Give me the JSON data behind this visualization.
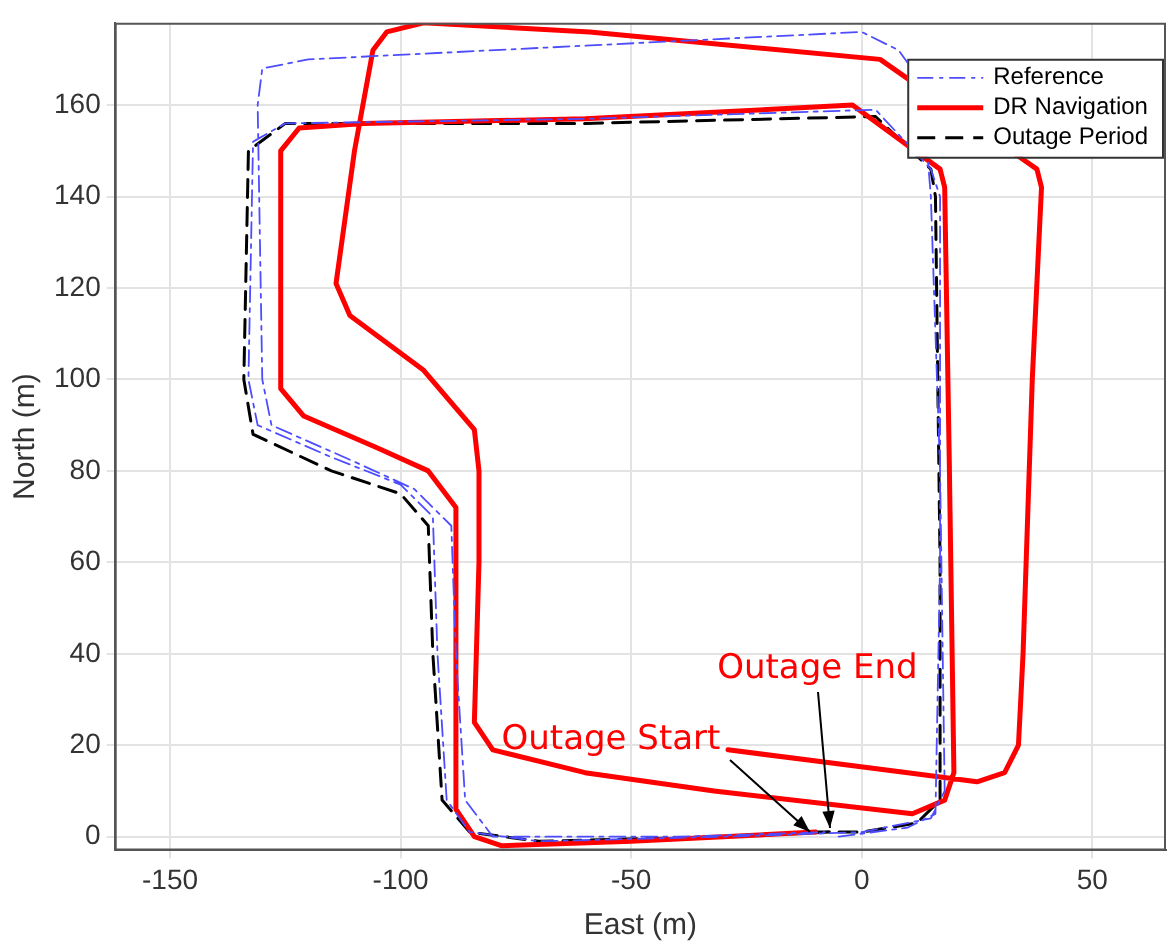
{
  "chart_data": {
    "type": "line",
    "xlabel": "East (m)",
    "ylabel": "North (m)",
    "xlim": [
      -162,
      66
    ],
    "ylim": [
      -3,
      178
    ],
    "xticks": [
      -150,
      -100,
      -50,
      0,
      50
    ],
    "yticks": [
      0,
      20,
      40,
      60,
      80,
      100,
      120,
      140,
      160
    ],
    "grid": true,
    "legend": "top right",
    "marker": "none",
    "series": [
      {
        "name": "Reference",
        "color": "#4d4dff",
        "line_style": "dashdot",
        "x": [
          -5,
          10,
          16,
          17,
          17,
          15,
          3,
          -60,
          -125,
          -132,
          -133,
          -131,
          -115,
          -100,
          -93,
          -92,
          -90,
          -85,
          -70,
          -30,
          0,
          15,
          18,
          17,
          15,
          13,
          8,
          0,
          -60,
          -120,
          -130,
          -131,
          -130,
          -128,
          -110,
          -97,
          -89,
          -88,
          -86,
          -80,
          -40,
          -8
        ],
        "values": [
          0,
          2,
          5,
          60,
          140,
          146,
          159,
          157,
          156,
          152,
          100,
          90,
          83,
          77,
          70,
          40,
          8,
          1,
          -1,
          0,
          1,
          4,
          10,
          80,
          140,
          165,
          172,
          176,
          173,
          170,
          168,
          160,
          100,
          90,
          82,
          76,
          68,
          40,
          8,
          0,
          0,
          1
        ]
      },
      {
        "name": "DR Navigation",
        "color": "#ff0000",
        "line_style": "solid",
        "x": [
          -29,
          10,
          25,
          31,
          34,
          35,
          37,
          39,
          38,
          4,
          -59,
          -95,
          -103,
          -106,
          -110,
          -114,
          -111,
          -95,
          -84,
          -83,
          -83,
          -84,
          -80,
          -60,
          -32,
          11,
          18,
          20,
          19,
          18,
          17,
          -2,
          -60,
          -108,
          -122,
          -126,
          -126,
          -121,
          -105,
          -94,
          -88,
          -88,
          -84,
          -78,
          -50,
          -10
        ],
        "values": [
          19,
          14,
          12,
          14,
          20,
          40,
          100,
          142,
          146,
          170,
          176,
          178,
          176,
          172,
          150,
          121,
          114,
          102,
          89,
          80,
          60,
          25,
          19,
          14,
          10,
          5,
          8,
          14,
          82,
          142,
          146,
          160,
          157,
          156,
          155,
          150,
          98,
          92,
          85,
          80,
          72,
          6,
          0,
          -2,
          -1,
          1
        ]
      },
      {
        "name": "Outage Period",
        "color": "#000000",
        "line_style": "dashed",
        "x": [
          -11,
          0,
          12,
          17,
          17,
          16,
          15,
          3,
          -60,
          -125,
          -133,
          -134,
          -132,
          -115,
          -100,
          -94,
          -93,
          -91,
          -85,
          -70,
          -30,
          -7
        ],
        "values": [
          1,
          1,
          3,
          8,
          60,
          140,
          146,
          157.5,
          156,
          156,
          150,
          100,
          88,
          80,
          75,
          68,
          40,
          8,
          1,
          -1,
          0,
          1
        ]
      }
    ],
    "annotations": [
      {
        "text": "Outage Start",
        "x": -11,
        "y": 1
      },
      {
        "text": "Outage End",
        "x": -7,
        "y": 2
      }
    ]
  }
}
